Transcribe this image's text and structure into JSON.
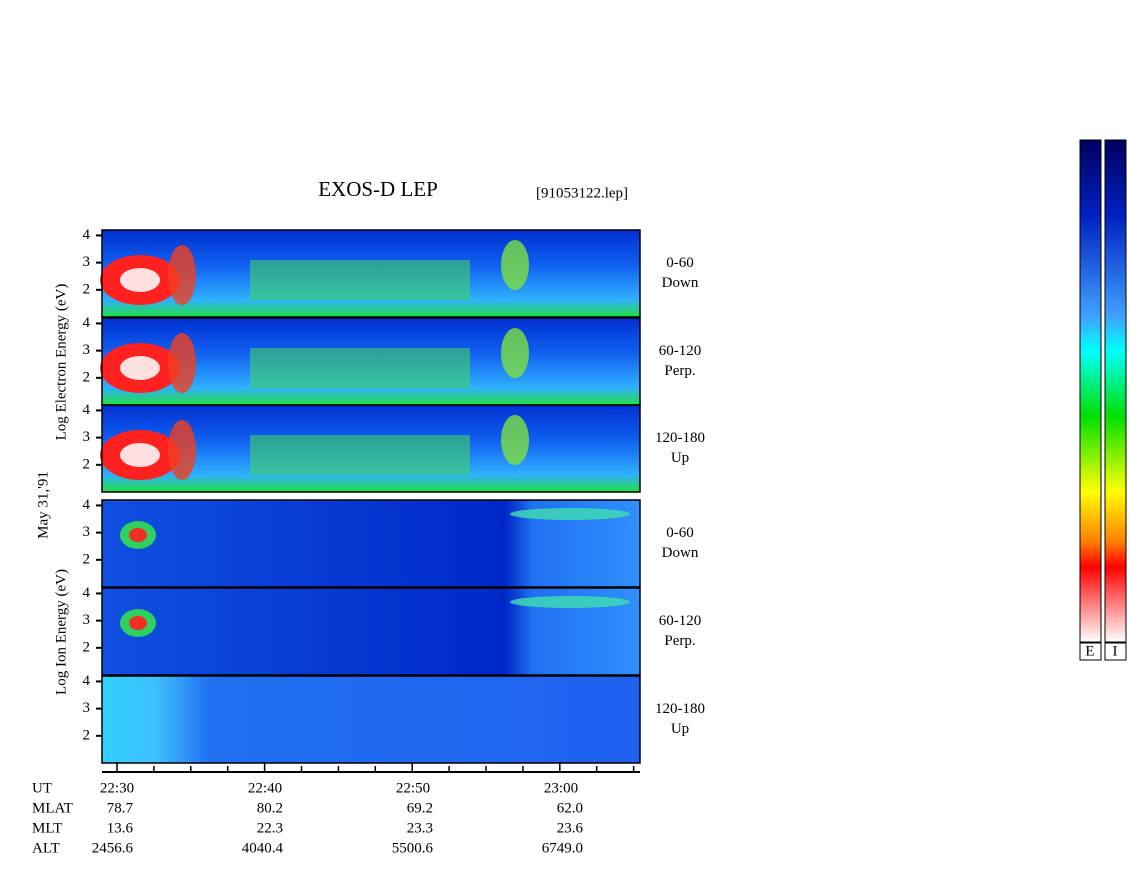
{
  "title": "EXOS-D LEP",
  "file": "[91053122.lep]",
  "date": "May 31,'91",
  "electron_label": "Log  Electron  Energy (eV)",
  "ion_label": "Log  Ion  Energy (eV)",
  "panels": [
    {
      "label": "0-60",
      "sub": "Down"
    },
    {
      "label": "60-120",
      "sub": "Perp."
    },
    {
      "label": "120-180",
      "sub": "Up"
    },
    {
      "label": "0-60",
      "sub": "Down"
    },
    {
      "label": "60-120",
      "sub": "Perp."
    },
    {
      "label": "120-180",
      "sub": "Up"
    }
  ],
  "yticks": [
    2,
    3,
    4
  ],
  "ylim": [
    1,
    4.2
  ],
  "time_ticks": [
    "22:30",
    "22:40",
    "22:50",
    "23:00"
  ],
  "orbit": {
    "labels": [
      "UT",
      "MLAT",
      "MLT",
      "ALT"
    ],
    "columns": [
      [
        "78.7",
        "13.6",
        "2456.6"
      ],
      [
        "80.2",
        "22.3",
        "4040.4"
      ],
      [
        "69.2",
        "23.3",
        "5500.6"
      ],
      [
        "62.0",
        "23.6",
        "6749.0"
      ]
    ]
  },
  "colorbar": [
    "E",
    "I"
  ]
}
